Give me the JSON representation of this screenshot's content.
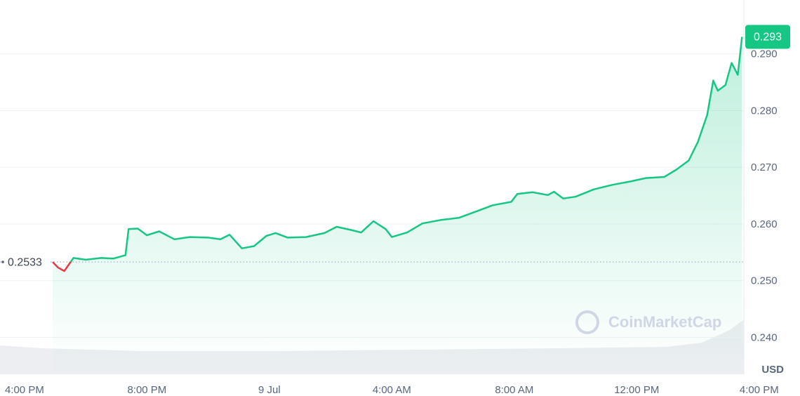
{
  "chart_data": {
    "type": "line",
    "x": [
      0.92,
      1.1,
      1.3,
      1.6,
      2.0,
      2.5,
      2.9,
      3.3,
      3.4,
      3.7,
      4.0,
      4.4,
      4.9,
      5.4,
      6.0,
      6.4,
      6.7,
      7.1,
      7.5,
      7.9,
      8.2,
      8.6,
      9.2,
      9.8,
      10.2,
      10.7,
      11.0,
      11.4,
      11.8,
      12.0,
      12.5,
      13.0,
      13.6,
      14.2,
      14.8,
      15.3,
      15.9,
      16.1,
      16.6,
      17.1,
      17.3,
      17.6,
      18.0,
      18.6,
      19.2,
      19.8,
      20.3,
      20.9,
      21.3,
      21.7,
      22.0,
      22.3,
      22.5,
      22.65,
      22.9,
      23.1,
      23.3,
      23.44
    ],
    "series": [
      {
        "color": "#16c784",
        "values": [
          0.2533,
          0.2523,
          0.2517,
          0.254,
          0.2537,
          0.254,
          0.2539,
          0.2545,
          0.2591,
          0.2592,
          0.258,
          0.2587,
          0.2573,
          0.2577,
          0.2576,
          0.2573,
          0.2581,
          0.2557,
          0.2561,
          0.2579,
          0.2584,
          0.2576,
          0.2577,
          0.2584,
          0.2595,
          0.2589,
          0.2585,
          0.2605,
          0.2591,
          0.2577,
          0.2585,
          0.2601,
          0.2607,
          0.2611,
          0.2623,
          0.2633,
          0.2639,
          0.2653,
          0.2656,
          0.2651,
          0.2657,
          0.2645,
          0.2648,
          0.2661,
          0.2669,
          0.2675,
          0.2681,
          0.2683,
          0.2696,
          0.2712,
          0.2745,
          0.2792,
          0.2853,
          0.2835,
          0.2845,
          0.2884,
          0.2863,
          0.293
        ]
      }
    ],
    "down_color": "#ea3943",
    "baseline": 0.2533,
    "last_price": 0.293,
    "y_unit": "USD",
    "watermark": "CoinMarketCap",
    "xlim": [
      -0.8,
      23.5
    ],
    "xticks": [
      {
        "value": 0,
        "label": "4:00 PM"
      },
      {
        "value": 4,
        "label": "8:00 PM"
      },
      {
        "value": 8,
        "label": "9 Jul"
      },
      {
        "value": 12,
        "label": "4:00 AM"
      },
      {
        "value": 16,
        "label": "8:00 AM"
      },
      {
        "value": 20,
        "label": "12:00 PM"
      },
      {
        "value": 24,
        "label": "4:00 PM"
      }
    ],
    "ylim": [
      0.2335,
      0.2995
    ],
    "yticks": [
      {
        "value": 0.24,
        "label": "0.240"
      },
      {
        "value": 0.25,
        "label": "0.250"
      },
      {
        "value": 0.26,
        "label": "0.260"
      },
      {
        "value": 0.27,
        "label": "0.270"
      },
      {
        "value": 0.28,
        "label": "0.280"
      },
      {
        "value": 0.29,
        "label": "0.290"
      }
    ],
    "grid": true
  }
}
